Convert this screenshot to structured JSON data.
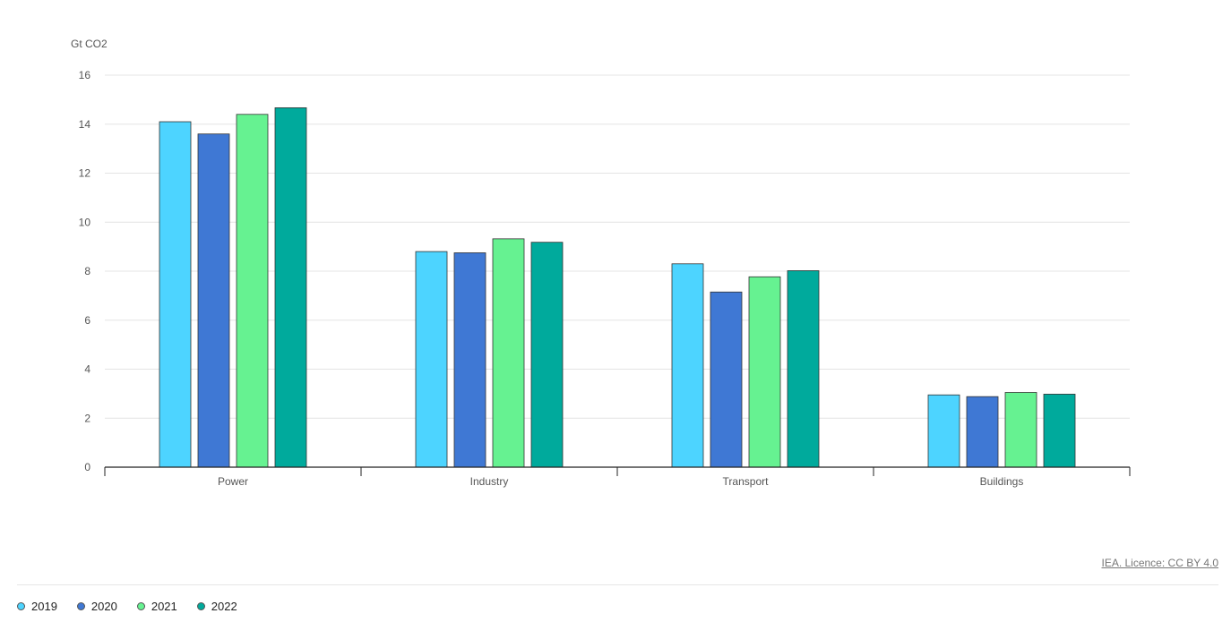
{
  "chart_data": {
    "type": "bar",
    "ylabel": "Gt CO2",
    "ylim": [
      0,
      16
    ],
    "yticks": [
      0,
      2,
      4,
      6,
      8,
      10,
      12,
      14,
      16
    ],
    "categories": [
      "Power",
      "Industry",
      "Transport",
      "Buildings"
    ],
    "series": [
      {
        "name": "2019",
        "color": "#4dd4ff",
        "values": [
          14.1,
          8.8,
          8.3,
          2.95
        ]
      },
      {
        "name": "2020",
        "color": "#3f78d4",
        "values": [
          13.6,
          8.75,
          7.15,
          2.88
        ]
      },
      {
        "name": "2021",
        "color": "#66f291",
        "values": [
          14.4,
          9.32,
          7.77,
          3.05
        ]
      },
      {
        "name": "2022",
        "color": "#00aa9c",
        "values": [
          14.67,
          9.18,
          8.02,
          2.98
        ]
      }
    ],
    "grid": true,
    "legend_position": "bottom-left"
  },
  "credit": "IEA. Licence: CC BY 4.0"
}
